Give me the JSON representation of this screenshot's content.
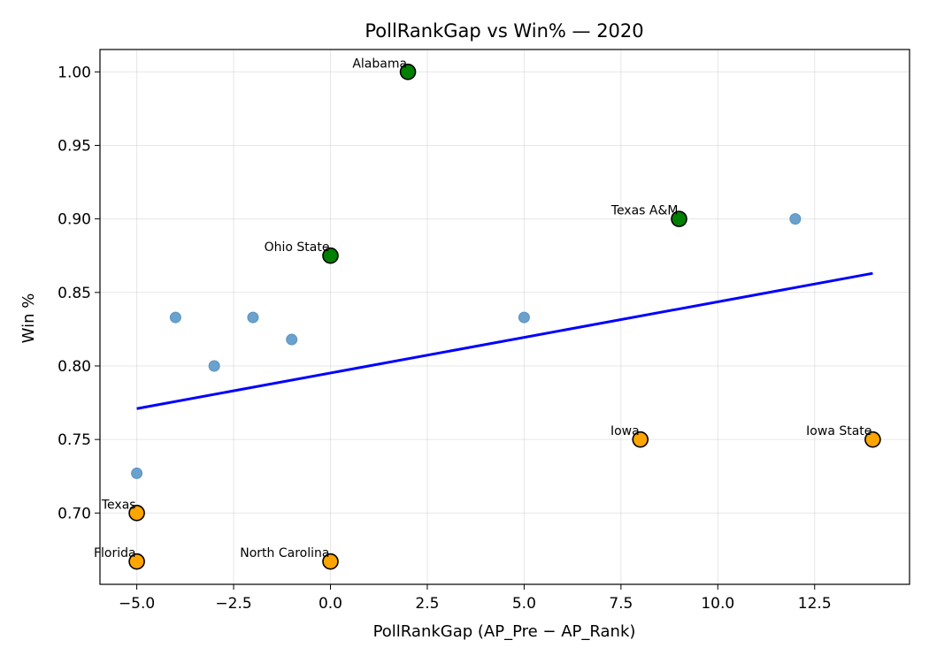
{
  "chart_data": {
    "type": "scatter",
    "title": "PollRankGap vs Win%  — 2020",
    "xlabel": "PollRankGap (AP_Pre − AP_Rank)",
    "ylabel": "Win %",
    "xlim": [
      -5.95,
      14.95
    ],
    "ylim": [
      0.6515,
      1.0152
    ],
    "grid": true,
    "xticks": [
      -5.0,
      -2.5,
      0.0,
      2.5,
      5.0,
      7.5,
      10.0,
      12.5
    ],
    "xtick_labels": [
      "−5.0",
      "−2.5",
      "0.0",
      "2.5",
      "5.0",
      "7.5",
      "10.0",
      "12.5"
    ],
    "yticks": [
      0.7,
      0.75,
      0.8,
      0.85,
      0.9,
      0.95,
      1.0
    ],
    "ytick_labels": [
      "0.70",
      "0.75",
      "0.80",
      "0.85",
      "0.90",
      "0.95",
      "1.00"
    ],
    "colors": {
      "other": "#6aa1cd",
      "other_edge": "#5b93c2",
      "top": "#008000",
      "bottom": "#ffa500",
      "edge": "#000000",
      "trend": "#0000ff"
    },
    "series": [
      {
        "group": "other",
        "points": [
          {
            "x": -5,
            "y": 0.727
          },
          {
            "x": -4,
            "y": 0.833
          },
          {
            "x": -3,
            "y": 0.8
          },
          {
            "x": -2,
            "y": 0.833
          },
          {
            "x": -1,
            "y": 0.818
          },
          {
            "x": 5,
            "y": 0.833
          },
          {
            "x": 12,
            "y": 0.9
          }
        ]
      },
      {
        "group": "top",
        "points": [
          {
            "x": 2,
            "y": 1.0,
            "label": "Alabama"
          },
          {
            "x": 9,
            "y": 0.9,
            "label": "Texas A&M"
          },
          {
            "x": 0,
            "y": 0.875,
            "label": "Ohio State"
          }
        ]
      },
      {
        "group": "bottom",
        "points": [
          {
            "x": 8,
            "y": 0.75,
            "label": "Iowa"
          },
          {
            "x": 14,
            "y": 0.75,
            "label": "Iowa State"
          },
          {
            "x": -5,
            "y": 0.7,
            "label": "Texas"
          },
          {
            "x": -5,
            "y": 0.667,
            "label": "Florida"
          },
          {
            "x": 0,
            "y": 0.667,
            "label": "North Carolina"
          }
        ]
      }
    ],
    "trend_line": {
      "x": [
        -5,
        14
      ],
      "y": [
        0.771,
        0.863
      ]
    }
  }
}
